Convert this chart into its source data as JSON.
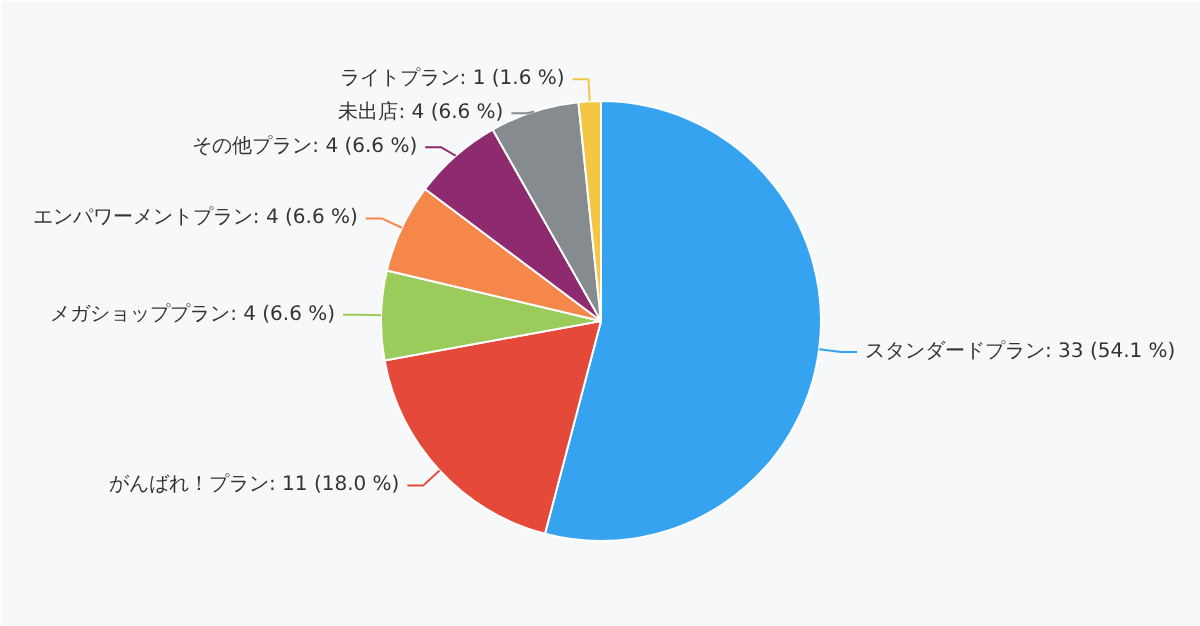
{
  "chart_data": {
    "type": "pie",
    "categories": [
      "スタンダードプラン",
      "がんばれ！プラン",
      "メガショッププラン",
      "エンパワーメントプラン",
      "その他プラン",
      "未出店",
      "ライトプラン"
    ],
    "values": [
      33,
      11,
      4,
      4,
      4,
      4,
      1
    ],
    "colors": [
      "#35a3f0",
      "#e5493a",
      "#9bcb5a",
      "#f5874a",
      "#8e2a6e",
      "#858b8e",
      "#f3c744"
    ],
    "value_labels": [
      "33 (54.1 %)",
      "11 (18.0 %)",
      "4 (6.6 %)",
      "4 (6.6 %)",
      "4 (6.6 %)",
      "4 (6.6 %)",
      "1 (1.6 %)"
    ]
  }
}
